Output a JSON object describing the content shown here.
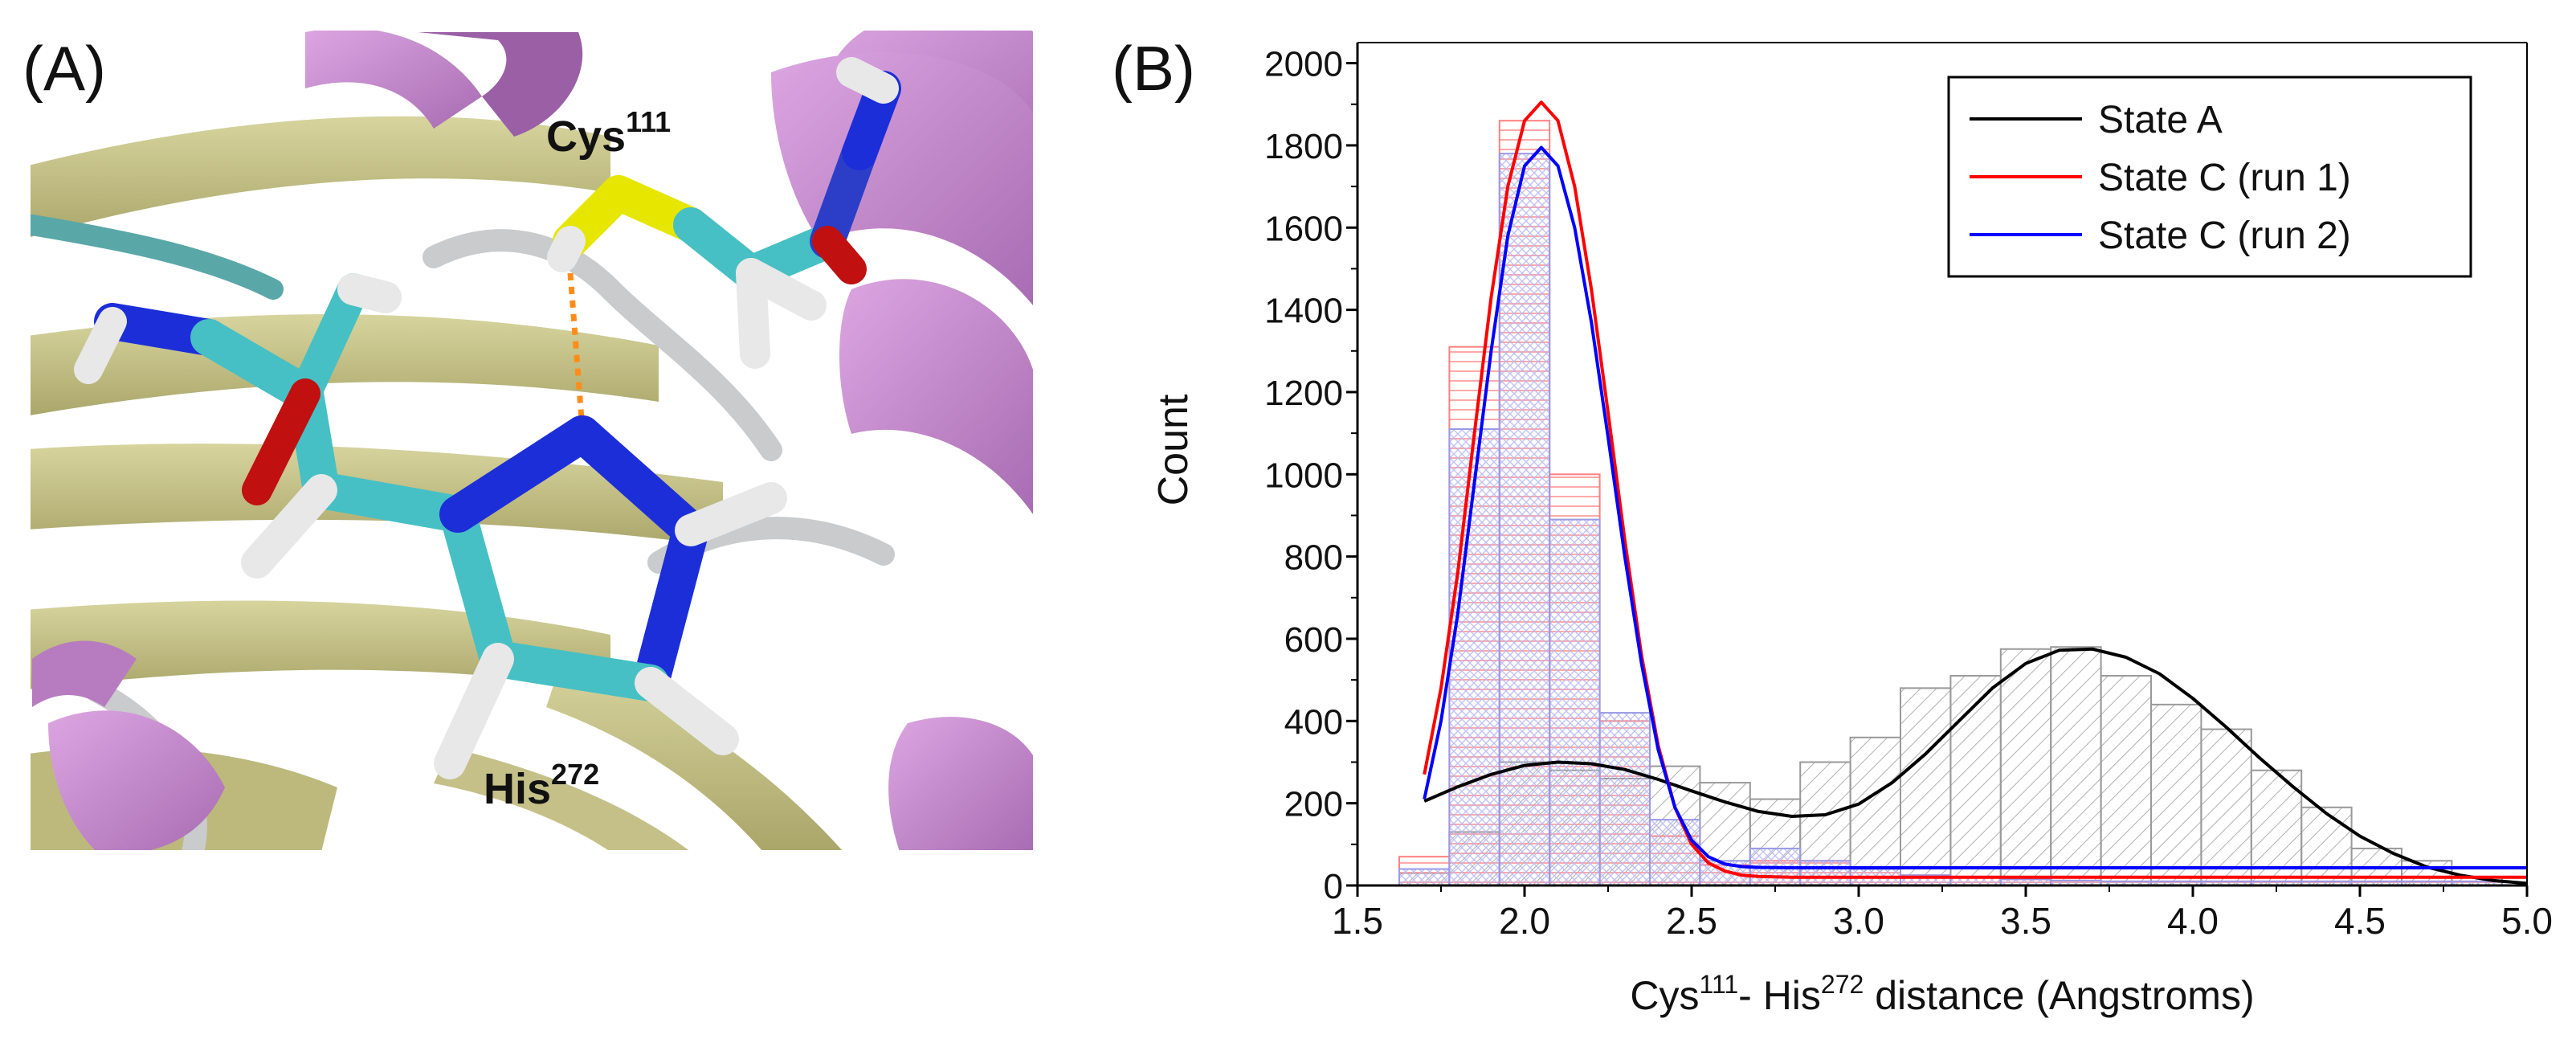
{
  "panel_a": {
    "label": "(A)",
    "cys_name": "Cys",
    "cys_num": "111",
    "his_name": "His",
    "his_num": "272"
  },
  "panel_b": {
    "label": "(B)"
  },
  "colors": {
    "state_a": "#000000",
    "state_c_run1": "#ff0000",
    "state_c_run2": "#0000ff",
    "helix_purple": "#c88ed0",
    "sheet_yellow": "#c8c48a",
    "carbon_cyan": "#46c0c4",
    "nitrogen_blue": "#1c2ed8",
    "sulfur_yellow": "#e6e600",
    "oxygen_red": "#c01010",
    "hydrogen_white": "#e8e8e8",
    "hbond_orange": "#ff8c1a"
  },
  "chart_data": {
    "type": "bar",
    "xlabel_parts": [
      "Cys",
      "111",
      "- His",
      "272",
      " distance (Angstroms)"
    ],
    "ylabel": "Count",
    "xlim": [
      1.5,
      5.0
    ],
    "ylim": [
      0,
      2050
    ],
    "x_ticks": [
      "1.5",
      "2.0",
      "2.5",
      "3.0",
      "3.5",
      "4.0",
      "4.5",
      "5.0"
    ],
    "y_ticks": [
      "0",
      "200",
      "400",
      "600",
      "800",
      "1000",
      "1200",
      "1400",
      "1600",
      "1800",
      "2000"
    ],
    "grid": false,
    "legend_position": "top-right",
    "bin_width": 0.15,
    "bins": [
      1.7,
      1.85,
      2.0,
      2.15,
      2.3,
      2.45,
      2.6,
      2.75,
      2.9,
      3.05,
      3.2,
      3.35,
      3.5,
      3.65,
      3.8,
      3.95,
      4.1,
      4.25,
      4.4,
      4.55,
      4.7,
      4.85
    ],
    "series": [
      {
        "name": "State A",
        "color": "#000000",
        "hist": [
          30,
          130,
          300,
          280,
          260,
          290,
          250,
          210,
          300,
          360,
          480,
          510,
          575,
          580,
          510,
          440,
          380,
          280,
          190,
          90,
          60,
          20
        ],
        "curve": {
          "x": [
            1.7,
            1.8,
            1.9,
            2.0,
            2.1,
            2.2,
            2.3,
            2.4,
            2.5,
            2.6,
            2.7,
            2.8,
            2.9,
            3.0,
            3.1,
            3.2,
            3.3,
            3.4,
            3.5,
            3.6,
            3.7,
            3.8,
            3.9,
            4.0,
            4.1,
            4.2,
            4.3,
            4.4,
            4.5,
            4.6,
            4.7,
            4.8,
            4.9,
            5.0
          ],
          "y": [
            205,
            240,
            270,
            292,
            300,
            296,
            282,
            258,
            230,
            203,
            180,
            168,
            172,
            198,
            250,
            320,
            400,
            480,
            540,
            572,
            575,
            555,
            515,
            455,
            385,
            310,
            240,
            175,
            120,
            78,
            45,
            25,
            12,
            5
          ]
        }
      },
      {
        "name": "State C (run 1)",
        "color": "#ff0000",
        "hist": [
          70,
          1310,
          1860,
          1000,
          400,
          120,
          50,
          60,
          60,
          40,
          25,
          20,
          15,
          12,
          10,
          10,
          10,
          10,
          10,
          10,
          10,
          10
        ],
        "curve": {
          "x": [
            1.7,
            1.75,
            1.8,
            1.85,
            1.9,
            1.95,
            2.0,
            2.05,
            2.1,
            2.15,
            2.2,
            2.25,
            2.3,
            2.35,
            2.4,
            2.45,
            2.5,
            2.55,
            2.6,
            2.65,
            2.7,
            2.8,
            3.0,
            3.5,
            4.0,
            4.5,
            5.0
          ],
          "y": [
            270,
            480,
            760,
            1100,
            1430,
            1700,
            1860,
            1905,
            1860,
            1700,
            1450,
            1150,
            840,
            560,
            340,
            190,
            100,
            55,
            35,
            25,
            22,
            20,
            20,
            20,
            20,
            20,
            20
          ]
        }
      },
      {
        "name": "State C (run 2)",
        "color": "#0000ff",
        "hist": [
          40,
          1110,
          1780,
          890,
          420,
          160,
          60,
          90,
          60,
          40,
          25,
          20,
          15,
          12,
          10,
          10,
          10,
          10,
          10,
          10,
          10,
          10
        ],
        "curve": {
          "x": [
            1.7,
            1.75,
            1.8,
            1.85,
            1.9,
            1.95,
            2.0,
            2.05,
            2.1,
            2.15,
            2.2,
            2.25,
            2.3,
            2.35,
            2.4,
            2.45,
            2.5,
            2.55,
            2.6,
            2.65,
            2.7,
            2.8,
            3.0,
            3.5,
            4.0,
            4.5,
            5.0
          ],
          "y": [
            210,
            400,
            660,
            980,
            1300,
            1580,
            1750,
            1795,
            1750,
            1600,
            1370,
            1090,
            800,
            540,
            330,
            190,
            110,
            70,
            52,
            46,
            44,
            43,
            43,
            43,
            43,
            43,
            43
          ]
        }
      }
    ]
  }
}
